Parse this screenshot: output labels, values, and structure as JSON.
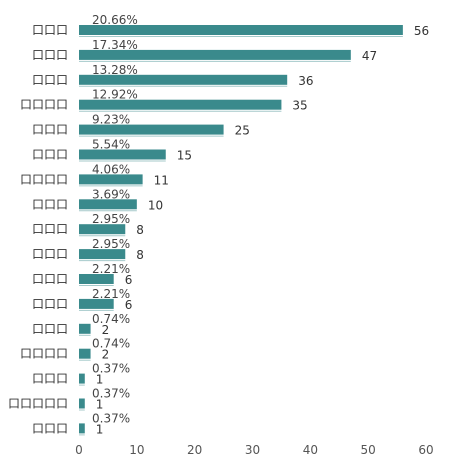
{
  "chart_data": {
    "type": "bar",
    "orientation": "horizontal",
    "categories": [
      "口口口",
      "口口口",
      "口口口",
      "口口口口",
      "口口口",
      "口口口",
      "口口口口",
      "口口口",
      "口口口",
      "口口口",
      "口口口",
      "口口口",
      "口口口",
      "口口口口",
      "口口口",
      "口口口口口",
      "口口口"
    ],
    "values": [
      56,
      47,
      36,
      35,
      25,
      15,
      11,
      10,
      8,
      8,
      6,
      6,
      2,
      2,
      1,
      1,
      1
    ],
    "percent_labels": [
      "20.66%",
      "17.34%",
      "13.28%",
      "12.92%",
      "9.23%",
      "5.54%",
      "4.06%",
      "3.69%",
      "2.95%",
      "2.95%",
      "2.21%",
      "2.21%",
      "0.74%",
      "0.74%",
      "0.37%",
      "0.37%",
      "0.37%"
    ],
    "x_ticks": [
      0,
      10,
      20,
      30,
      40,
      50,
      60
    ],
    "xlim": [
      0,
      60
    ],
    "grid": false,
    "bar_color": "#3a8a8c"
  }
}
